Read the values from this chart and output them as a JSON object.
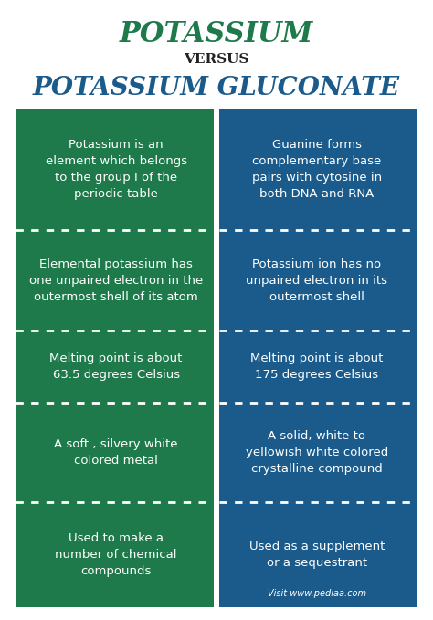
{
  "title1": "POTASSIUM",
  "versus": "VERSUS",
  "title2": "POTASSIUM GLUCONATE",
  "title1_color": "#1e7a4a",
  "versus_color": "#222222",
  "title2_color": "#1a5b8c",
  "left_bg": "#1e7a4a",
  "right_bg": "#1a5b8c",
  "white": "#ffffff",
  "bg_color": "#ffffff",
  "left_cells": [
    "Potassium is an\nelement which belongs\nto the group I of the\nperiodic table",
    "Elemental potassium has\none unpaired electron in the\noutermost shell of its atom",
    "Melting point is about\n63.5 degrees Celsius",
    "A soft , silvery white\ncolored metal",
    "Used to make a\nnumber of chemical\ncompounds"
  ],
  "right_cells": [
    "Guanine forms\ncomplementary base\npairs with cytosine in\nboth DNA and RNA",
    "Potassium ion has no\nunpaired electron in its\noutermost shell",
    "Melting point is about\n175 degrees Celsius",
    "A solid, white to\nyellowish white colored\ncrystalline compound",
    "Used as a supplement\nor a sequestrant"
  ],
  "footer": "Visit www.pediaa.com",
  "row_props": [
    0.22,
    0.18,
    0.13,
    0.18,
    0.19
  ]
}
